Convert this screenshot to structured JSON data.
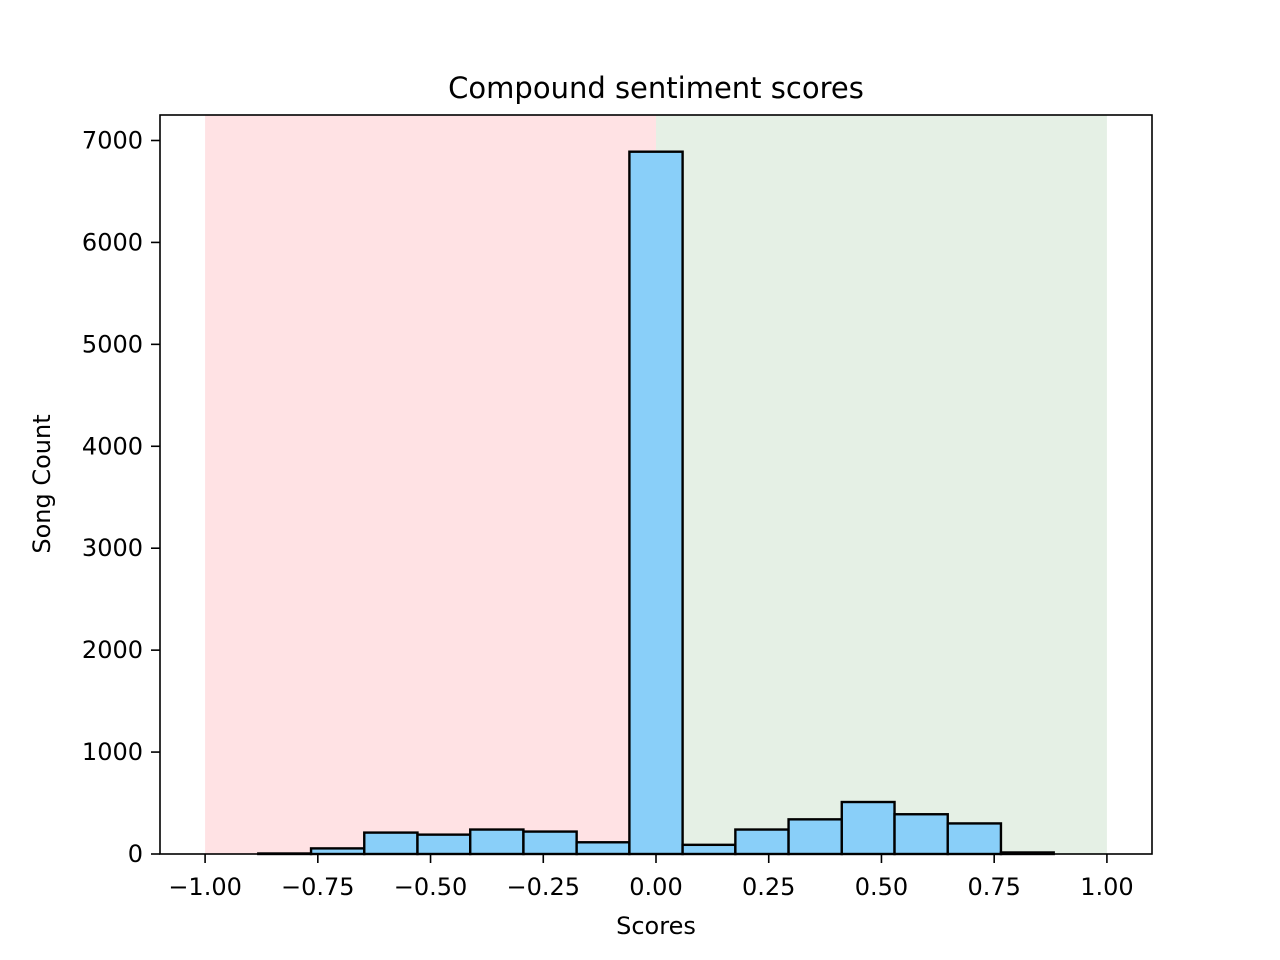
{
  "chart_data": {
    "type": "bar",
    "title": "Compound sentiment scores",
    "xlabel": "Scores",
    "ylabel": "Song Count",
    "xlim": [
      -1.1,
      1.1
    ],
    "ylim": [
      0,
      7250
    ],
    "grid": false,
    "bin_width": 0.1176,
    "bins": [
      {
        "x0": -0.882,
        "x1": -0.765,
        "count": 5
      },
      {
        "x0": -0.765,
        "x1": -0.647,
        "count": 55
      },
      {
        "x0": -0.647,
        "x1": -0.529,
        "count": 210
      },
      {
        "x0": -0.529,
        "x1": -0.412,
        "count": 190
      },
      {
        "x0": -0.412,
        "x1": -0.294,
        "count": 240
      },
      {
        "x0": -0.294,
        "x1": -0.176,
        "count": 220
      },
      {
        "x0": -0.176,
        "x1": -0.059,
        "count": 115
      },
      {
        "x0": -0.059,
        "x1": 0.059,
        "count": 6890
      },
      {
        "x0": 0.059,
        "x1": 0.176,
        "count": 90
      },
      {
        "x0": 0.176,
        "x1": 0.294,
        "count": 240
      },
      {
        "x0": 0.294,
        "x1": 0.412,
        "count": 340
      },
      {
        "x0": 0.412,
        "x1": 0.529,
        "count": 510
      },
      {
        "x0": 0.529,
        "x1": 0.647,
        "count": 390
      },
      {
        "x0": 0.647,
        "x1": 0.765,
        "count": 300
      },
      {
        "x0": 0.765,
        "x1": 0.882,
        "count": 15
      }
    ],
    "shaded_regions": [
      {
        "x0": -1.0,
        "x1": 0.0,
        "color": "#ffe2e4"
      },
      {
        "x0": 0.0,
        "x1": 1.0,
        "color": "#e5f0e5"
      }
    ],
    "x_ticks": [
      {
        "value": -1.0,
        "label": "−1.00"
      },
      {
        "value": -0.75,
        "label": "−0.75"
      },
      {
        "value": -0.5,
        "label": "−0.50"
      },
      {
        "value": -0.25,
        "label": "−0.25"
      },
      {
        "value": 0.0,
        "label": "0.00"
      },
      {
        "value": 0.25,
        "label": "0.25"
      },
      {
        "value": 0.5,
        "label": "0.50"
      },
      {
        "value": 0.75,
        "label": "0.75"
      },
      {
        "value": 1.0,
        "label": "1.00"
      }
    ],
    "y_ticks": [
      {
        "value": 0,
        "label": "0"
      },
      {
        "value": 1000,
        "label": "1000"
      },
      {
        "value": 2000,
        "label": "2000"
      },
      {
        "value": 3000,
        "label": "3000"
      },
      {
        "value": 4000,
        "label": "4000"
      },
      {
        "value": 5000,
        "label": "5000"
      },
      {
        "value": 6000,
        "label": "6000"
      },
      {
        "value": 7000,
        "label": "7000"
      }
    ],
    "colors": {
      "bar_fill": "#89cff9",
      "bar_edge": "#000000"
    }
  }
}
